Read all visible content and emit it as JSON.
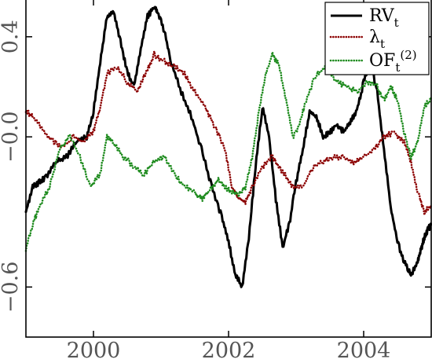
{
  "chart_data": {
    "type": "line",
    "title": "",
    "xlabel": "",
    "ylabel": "",
    "xlim": [
      1999.0,
      2005.0
    ],
    "ylim": [
      -0.8,
      0.55
    ],
    "x_ticks": [
      2000,
      2002,
      2004
    ],
    "x_tick_labels": [
      "2000",
      "2002",
      "2004"
    ],
    "y_ticks": [
      -0.6,
      -0.0,
      0.4
    ],
    "y_tick_labels": [
      "−0.6",
      "−0.0",
      "0.4"
    ],
    "grid": false,
    "legend": {
      "placement": "top-right"
    },
    "series": [
      {
        "name": "RV_t",
        "color": "#000000",
        "style": "solid",
        "x": [
          1999.0,
          1999.1,
          1999.2,
          1999.3,
          1999.45,
          1999.6,
          1999.75,
          1999.9,
          2000.0,
          2000.1,
          2000.2,
          2000.3,
          2000.4,
          2000.5,
          2000.6,
          2000.7,
          2000.8,
          2000.9,
          2000.95,
          2001.05,
          2001.15,
          2001.3,
          2001.45,
          2001.6,
          2001.75,
          2001.9,
          2002.0,
          2002.1,
          2002.2,
          2002.3,
          2002.4,
          2002.5,
          2002.6,
          2002.7,
          2002.8,
          2002.9,
          2003.0,
          2003.1,
          2003.2,
          2003.3,
          2003.4,
          2003.5,
          2003.6,
          2003.7,
          2003.8,
          2003.9,
          2004.0,
          2004.1,
          2004.2,
          2004.3,
          2004.4,
          2004.5,
          2004.6,
          2004.7,
          2004.8,
          2004.85,
          2004.9,
          2004.95,
          2005.0
        ],
        "values": [
          -0.3,
          -0.2,
          -0.18,
          -0.16,
          -0.1,
          -0.08,
          -0.02,
          0.0,
          0.1,
          0.3,
          0.48,
          0.5,
          0.38,
          0.26,
          0.2,
          0.35,
          0.48,
          0.52,
          0.5,
          0.42,
          0.3,
          0.18,
          0.08,
          -0.05,
          -0.2,
          -0.32,
          -0.42,
          -0.55,
          -0.6,
          -0.4,
          -0.12,
          0.12,
          0.0,
          -0.25,
          -0.44,
          -0.35,
          -0.18,
          -0.05,
          0.1,
          0.08,
          0.0,
          0.02,
          0.05,
          0.02,
          0.06,
          0.1,
          0.22,
          0.3,
          0.18,
          -0.05,
          -0.28,
          -0.42,
          -0.5,
          -0.55,
          -0.5,
          -0.45,
          -0.4,
          -0.37,
          -0.35
        ]
      },
      {
        "name": "λ_t",
        "color": "#8b0000",
        "style": "dotted",
        "x": [
          1999.0,
          1999.1,
          1999.25,
          1999.4,
          1999.55,
          1999.7,
          1999.85,
          2000.0,
          2000.1,
          2000.2,
          2000.35,
          2000.5,
          2000.65,
          2000.8,
          2000.9,
          2001.05,
          2001.2,
          2001.35,
          2001.5,
          2001.65,
          2001.8,
          2001.95,
          2002.05,
          2002.15,
          2002.25,
          2002.35,
          2002.5,
          2002.65,
          2002.8,
          2002.95,
          2003.1,
          2003.25,
          2003.4,
          2003.55,
          2003.7,
          2003.85,
          2004.0,
          2004.15,
          2004.3,
          2004.45,
          2004.6,
          2004.7,
          2004.8,
          2004.9,
          2005.0
        ],
        "values": [
          0.1,
          0.08,
          0.03,
          -0.02,
          -0.04,
          0.0,
          -0.02,
          0.02,
          0.12,
          0.25,
          0.28,
          0.22,
          0.18,
          0.27,
          0.33,
          0.3,
          0.28,
          0.25,
          0.18,
          0.12,
          0.04,
          -0.05,
          -0.2,
          -0.24,
          -0.26,
          -0.2,
          -0.12,
          -0.08,
          -0.14,
          -0.2,
          -0.2,
          -0.12,
          -0.1,
          -0.08,
          -0.08,
          -0.1,
          -0.08,
          -0.05,
          0.0,
          0.02,
          -0.02,
          -0.1,
          -0.22,
          -0.3,
          -0.27
        ]
      },
      {
        "name": "OF_t^(2)",
        "color": "#1e8b1e",
        "style": "dotted",
        "x": [
          1999.0,
          1999.1,
          1999.2,
          1999.35,
          1999.5,
          1999.65,
          1999.8,
          1999.95,
          2000.1,
          2000.2,
          2000.3,
          2000.45,
          2000.6,
          2000.75,
          2000.9,
          2001.05,
          2001.2,
          2001.35,
          2001.5,
          2001.6,
          2001.7,
          2001.85,
          2001.95,
          2002.05,
          2002.15,
          2002.25,
          2002.35,
          2002.45,
          2002.55,
          2002.65,
          2002.75,
          2002.85,
          2002.95,
          2003.05,
          2003.15,
          2003.3,
          2003.45,
          2003.6,
          2003.75,
          2003.9,
          2004.05,
          2004.2,
          2004.3,
          2004.4,
          2004.5,
          2004.6,
          2004.7,
          2004.8,
          2004.9,
          2005.0
        ],
        "values": [
          -0.45,
          -0.35,
          -0.28,
          -0.2,
          -0.05,
          0.0,
          -0.08,
          -0.2,
          -0.15,
          0.0,
          -0.02,
          -0.08,
          -0.12,
          -0.15,
          -0.1,
          -0.08,
          -0.15,
          -0.2,
          -0.22,
          -0.25,
          -0.22,
          -0.17,
          -0.2,
          -0.22,
          -0.23,
          -0.2,
          -0.08,
          0.1,
          0.25,
          0.33,
          0.28,
          0.15,
          0.0,
          0.05,
          0.15,
          0.25,
          0.28,
          0.22,
          0.2,
          0.18,
          0.22,
          0.2,
          0.15,
          0.2,
          0.15,
          0.02,
          -0.08,
          -0.02,
          0.12,
          0.15
        ]
      }
    ]
  }
}
